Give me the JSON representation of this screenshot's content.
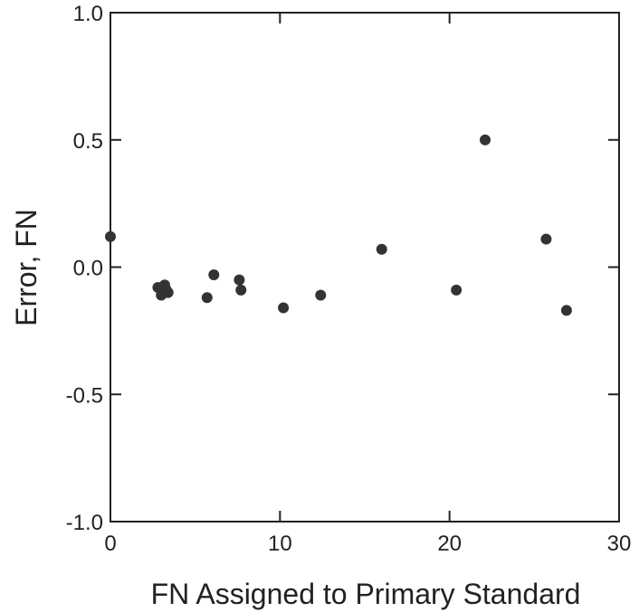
{
  "chart_data": {
    "type": "scatter",
    "title": "",
    "xlabel": "FN Assigned to Primary Standard",
    "ylabel": "Error, FN",
    "xlim": [
      0,
      30
    ],
    "ylim": [
      -1.0,
      1.0
    ],
    "x_ticks": [
      0,
      10,
      20,
      30
    ],
    "x_tick_labels": [
      "0",
      "10",
      "20",
      "30"
    ],
    "y_ticks": [
      1.0,
      0.5,
      0.0,
      -0.5,
      -1.0
    ],
    "y_tick_labels": [
      "1.0",
      "0.5",
      "0.0",
      "-0.5",
      "-1.0"
    ],
    "grid": false,
    "legend": "none",
    "marker_color": "#333333",
    "series": [
      {
        "points": [
          {
            "x": 0.0,
            "y": 0.12
          },
          {
            "x": 2.8,
            "y": -0.08
          },
          {
            "x": 3.0,
            "y": -0.11
          },
          {
            "x": 3.2,
            "y": -0.07
          },
          {
            "x": 3.3,
            "y": -0.09
          },
          {
            "x": 3.4,
            "y": -0.1
          },
          {
            "x": 5.7,
            "y": -0.12
          },
          {
            "x": 6.1,
            "y": -0.03
          },
          {
            "x": 7.6,
            "y": -0.05
          },
          {
            "x": 7.7,
            "y": -0.09
          },
          {
            "x": 10.2,
            "y": -0.16
          },
          {
            "x": 12.4,
            "y": -0.11
          },
          {
            "x": 16.0,
            "y": 0.07
          },
          {
            "x": 20.4,
            "y": -0.09
          },
          {
            "x": 22.1,
            "y": 0.5
          },
          {
            "x": 25.7,
            "y": 0.11
          },
          {
            "x": 26.9,
            "y": -0.17
          }
        ]
      }
    ]
  }
}
